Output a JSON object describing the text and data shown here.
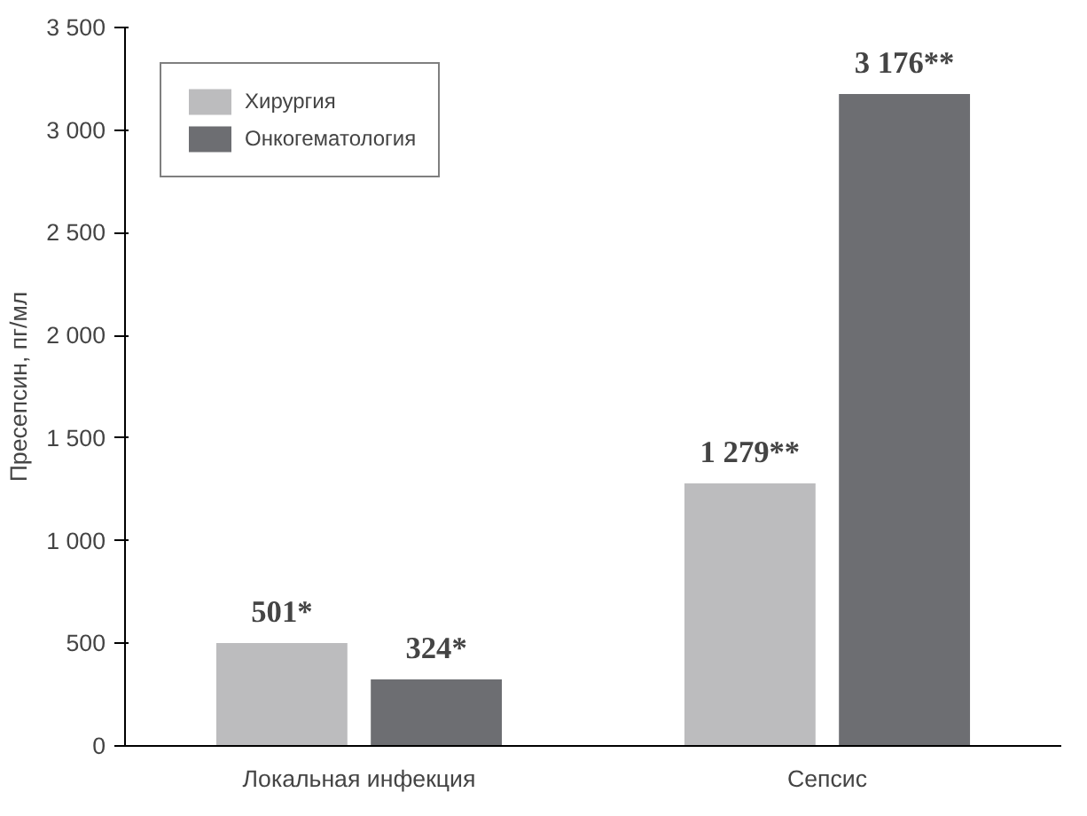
{
  "chart_data": {
    "type": "bar",
    "ylabel": "Пресепсин, пг/мл",
    "categories": [
      "Локальная инфекция",
      "Сепсис"
    ],
    "series": [
      {
        "name": "Хирургия",
        "color": "#bcbcbe",
        "values": [
          501,
          1279
        ],
        "value_labels": [
          "501*",
          "1 279**"
        ]
      },
      {
        "name": "Онкогематология",
        "color": "#6d6e72",
        "values": [
          324,
          3176
        ],
        "value_labels": [
          "324*",
          "3 176**"
        ]
      }
    ],
    "ylim": [
      0,
      3500
    ],
    "yticks": [
      0,
      500,
      {
        "value": 1000,
        "label": "1 000"
      },
      {
        "value": 1500,
        "label": "1 500"
      },
      {
        "value": 2000,
        "label": "2 000"
      },
      {
        "value": 2500,
        "label": "2 500"
      },
      {
        "value": 3000,
        "label": "3 000"
      },
      {
        "value": 3500,
        "label": "3 500"
      }
    ],
    "grid": false,
    "legend": "top left"
  }
}
